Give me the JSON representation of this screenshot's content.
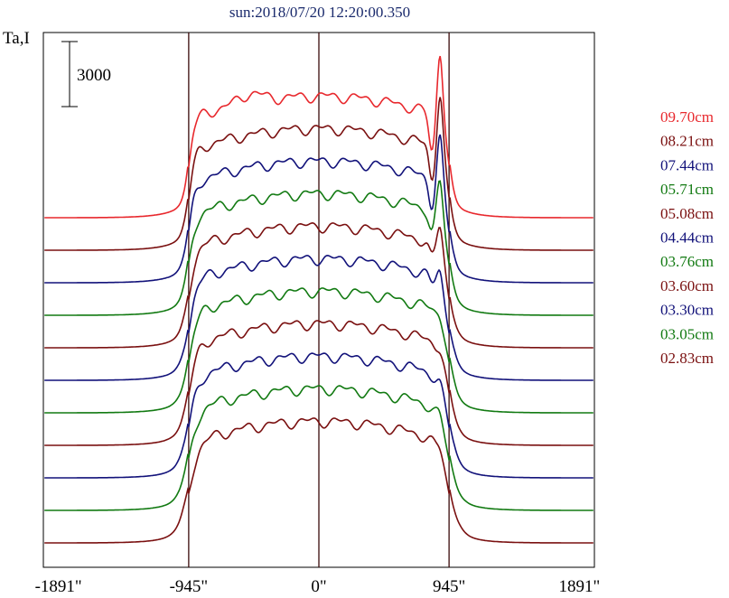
{
  "chart_data": {
    "type": "line",
    "title": "sun:2018/07/20 12:20:00.350",
    "ylabel": "Ta,I",
    "xlim": [
      -2000,
      2000
    ],
    "xticks": [
      -1891,
      -945,
      0,
      945,
      1891
    ],
    "xtick_labels": [
      "-1891\"",
      "-945\"",
      "0\"",
      "945\"",
      "1891\""
    ],
    "vlines": [
      -945,
      0,
      945
    ],
    "scale_bar": {
      "label": "3000",
      "value": 3000
    },
    "grid": false,
    "legend_position": "right",
    "series": [
      {
        "name": "09.70cm",
        "color": "#e8282d",
        "baseline": 3000,
        "profile": "p0"
      },
      {
        "name": "08.21cm",
        "color": "#7a1010",
        "baseline": 2250,
        "profile": "p1"
      },
      {
        "name": "07.44cm",
        "color": "#12127a",
        "baseline": 1500,
        "profile": "p2"
      },
      {
        "name": "05.71cm",
        "color": "#127a12",
        "baseline": 750,
        "profile": "p3"
      },
      {
        "name": "05.08cm",
        "color": "#7a1010",
        "baseline": 0,
        "profile": "p4"
      },
      {
        "name": "04.44cm",
        "color": "#12127a",
        "baseline": -750,
        "profile": "p5"
      },
      {
        "name": "03.76cm",
        "color": "#127a12",
        "baseline": -1500,
        "profile": "p6"
      },
      {
        "name": "03.60cm",
        "color": "#7a1010",
        "baseline": -2250,
        "profile": "p7"
      },
      {
        "name": "03.30cm",
        "color": "#12127a",
        "baseline": -3000,
        "profile": "p8"
      },
      {
        "name": "03.05cm",
        "color": "#127a12",
        "baseline": -3750,
        "profile": "p9"
      },
      {
        "name": "02.83cm",
        "color": "#7a1010",
        "baseline": -4500,
        "profile": "p10"
      }
    ]
  }
}
